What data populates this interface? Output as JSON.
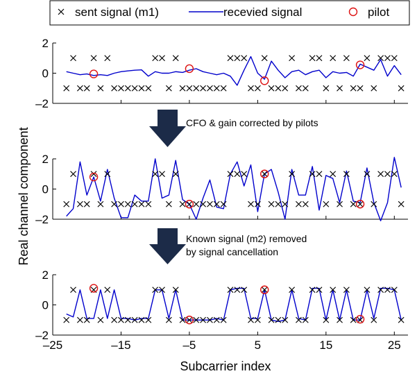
{
  "chart_data": {
    "type": "line",
    "xlabel": "Subcarrier index",
    "ylabel": "Real channel component",
    "xlim": [
      -25,
      27
    ],
    "xticks": [
      -25,
      -15,
      -5,
      5,
      15,
      25
    ],
    "xtick_labels": [
      "–25",
      "–15",
      "–5",
      "5",
      "15",
      "25"
    ],
    "ylim": [
      -2,
      2
    ],
    "yticks": [
      -2,
      0,
      2
    ],
    "ytick_labels": [
      "–2",
      "0",
      "2"
    ],
    "legend": {
      "placement": "top",
      "entries": [
        {
          "label": "sent signal (m1)",
          "marker": "x",
          "color": "#000000"
        },
        {
          "label": "recevied signal",
          "marker": "line",
          "color": "#0000cc"
        },
        {
          "label": "pilot",
          "marker": "circle",
          "color": "#dd1111"
        }
      ]
    },
    "annotations": [
      {
        "text": "CFO & gain corrected by pilots"
      },
      {
        "text_lines": [
          "Known signal (m2) removed",
          "by signal cancellation"
        ]
      }
    ],
    "colors": {
      "sent": "#000000",
      "received": "#0000cc",
      "pilot": "#dd1111",
      "arrow": "#1c2b48"
    },
    "x": [
      -23,
      -22,
      -21,
      -20,
      -19,
      -18,
      -17,
      -16,
      -15,
      -14,
      -13,
      -12,
      -11,
      -10,
      -9,
      -8,
      -7,
      -6,
      -5,
      -4,
      -3,
      -2,
      -1,
      0,
      1,
      2,
      3,
      4,
      5,
      6,
      7,
      8,
      9,
      10,
      11,
      12,
      13,
      14,
      15,
      16,
      17,
      18,
      19,
      20,
      21,
      22,
      23,
      24,
      25,
      26
    ],
    "sent": [
      -1,
      1,
      -1,
      -1,
      1,
      -1,
      1,
      -1,
      -1,
      -1,
      -1,
      -1,
      -1,
      1,
      1,
      -1,
      1,
      -1,
      -1,
      -1,
      -1,
      -1,
      -1,
      -1,
      1,
      1,
      1,
      -1,
      -1,
      1,
      -1,
      -1,
      -1,
      1,
      -1,
      -1,
      1,
      1,
      -1,
      1,
      -1,
      1,
      -1,
      -1,
      1,
      -1,
      1,
      1,
      1,
      -1
    ],
    "panels": [
      {
        "received": [
          0.1,
          0.0,
          -0.1,
          -0.05,
          -0.15,
          -0.1,
          -0.15,
          0.0,
          0.1,
          0.15,
          0.2,
          0.22,
          -0.2,
          0.1,
          0.0,
          0.0,
          0.1,
          0.05,
          0.2,
          0.3,
          0.1,
          0.0,
          -0.1,
          0.0,
          -0.2,
          -0.8,
          0.2,
          1.1,
          0.0,
          -0.4,
          0.8,
          0.2,
          -0.3,
          0.1,
          0.2,
          -0.1,
          0.1,
          0.2,
          -0.3,
          0.1,
          0.0,
          0.05,
          -0.2,
          0.6,
          0.4,
          0.2,
          0.9,
          -0.2,
          0.5,
          -0.1
        ],
        "pilots": [
          {
            "x": -19,
            "y": -0.05
          },
          {
            "x": -5,
            "y": 0.3
          },
          {
            "x": 6,
            "y": -0.5
          },
          {
            "x": 20,
            "y": 0.55
          }
        ]
      },
      {
        "received": [
          -1.8,
          -1.3,
          1.8,
          -0.4,
          0.8,
          -0.8,
          1.3,
          -0.6,
          -1.9,
          -1.9,
          -0.4,
          -0.8,
          -0.8,
          2.0,
          -0.6,
          -0.4,
          1.9,
          -0.7,
          -1.0,
          -2.0,
          -0.6,
          0.6,
          -1.2,
          -1.3,
          1.0,
          1.8,
          0.2,
          1.6,
          -1.5,
          1.0,
          1.3,
          -0.2,
          -2.0,
          1.3,
          -0.4,
          -0.4,
          1.5,
          -1.4,
          0.9,
          0.7,
          -0.9,
          1.2,
          -0.8,
          -0.9,
          1.4,
          -0.9,
          -2.1,
          -0.9,
          2.1,
          0.1
        ],
        "pilots": [
          {
            "x": -19,
            "y": 0.8
          },
          {
            "x": -5,
            "y": -1.0
          },
          {
            "x": 6,
            "y": 1.0
          },
          {
            "x": 20,
            "y": -1.0
          }
        ]
      },
      {
        "received": [
          -0.6,
          -0.8,
          1.0,
          -0.9,
          -0.9,
          1.0,
          -0.9,
          1.0,
          -0.9,
          -0.9,
          -1.0,
          -0.9,
          -0.9,
          1.0,
          1.0,
          -0.9,
          1.0,
          -1.0,
          -1.0,
          -1.0,
          -1.0,
          -1.0,
          -0.9,
          -1.0,
          1.0,
          1.1,
          1.1,
          -0.9,
          -0.9,
          1.0,
          -1.0,
          -1.1,
          -1.0,
          1.0,
          -0.9,
          -1.0,
          1.1,
          1.1,
          -1.0,
          1.0,
          -1.0,
          1.0,
          -1.0,
          -1.0,
          1.0,
          -0.9,
          1.1,
          1.1,
          1.0,
          -1.0
        ],
        "pilots": [
          {
            "x": -19,
            "y": 1.1
          },
          {
            "x": -5,
            "y": -1.0
          },
          {
            "x": 6,
            "y": 1.0
          },
          {
            "x": 20,
            "y": -0.95
          }
        ]
      }
    ]
  }
}
